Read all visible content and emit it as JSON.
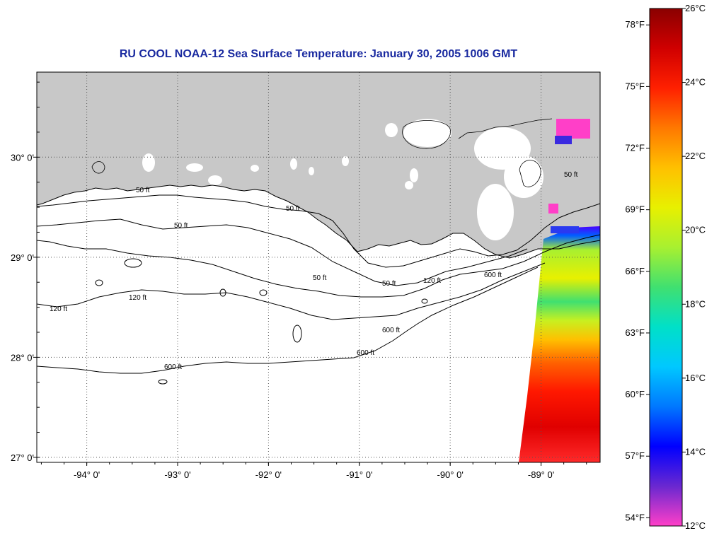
{
  "title": "RU COOL  NOAA-12  Sea Surface Temperature:  January 30, 2005 1006 GMT",
  "map": {
    "lon_min": -94.55,
    "lon_max": -88.35,
    "lat_min": 26.95,
    "lat_max": 30.85,
    "lon_ticks": [
      {
        "value": -94,
        "label": "-94° 0'"
      },
      {
        "value": -93,
        "label": "-93° 0'"
      },
      {
        "value": -92,
        "label": "-92° 0'"
      },
      {
        "value": -91,
        "label": "-91° 0'"
      },
      {
        "value": -90,
        "label": "-90° 0'"
      },
      {
        "value": -89,
        "label": "-89° 0'"
      }
    ],
    "lat_ticks": [
      {
        "value": 27,
        "label": "27° 0'"
      },
      {
        "value": 28,
        "label": "28° 0'"
      },
      {
        "value": 29,
        "label": "29° 0'"
      },
      {
        "value": 30,
        "label": "30° 0'"
      }
    ],
    "colors": {
      "land": "#c8c8c8",
      "water": "#ffffff",
      "grid": "#555555",
      "cloud": "#ffffff"
    }
  },
  "contour_labels": {
    "c50": "50 ft",
    "c120": "120 ft",
    "c600": "600 ft"
  },
  "colorbar": {
    "c_min": 12,
    "c_max": 26,
    "celsius_ticks": [
      {
        "value": 26,
        "label": "26°C"
      },
      {
        "value": 24,
        "label": "24°C"
      },
      {
        "value": 22,
        "label": "22°C"
      },
      {
        "value": 20,
        "label": "20°C"
      },
      {
        "value": 18,
        "label": "18°C"
      },
      {
        "value": 16,
        "label": "16°C"
      },
      {
        "value": 14,
        "label": "14°C"
      },
      {
        "value": 12,
        "label": "12°C"
      }
    ],
    "fahrenheit_ticks": [
      {
        "value": 78,
        "label": "78°F"
      },
      {
        "value": 75,
        "label": "75°F"
      },
      {
        "value": 72,
        "label": "72°F"
      },
      {
        "value": 69,
        "label": "69°F"
      },
      {
        "value": 66,
        "label": "66°F"
      },
      {
        "value": 63,
        "label": "63°F"
      },
      {
        "value": 60,
        "label": "60°F"
      },
      {
        "value": 57,
        "label": "57°F"
      },
      {
        "value": 54,
        "label": "54°F"
      }
    ],
    "stops": [
      "#ff3fc8",
      "#6a28d0",
      "#0000ff",
      "#0078ff",
      "#00c8ff",
      "#00e0c8",
      "#40e070",
      "#a8f030",
      "#e8f000",
      "#ffc000",
      "#ff7800",
      "#ff2000",
      "#d00000",
      "#8a0000"
    ]
  }
}
